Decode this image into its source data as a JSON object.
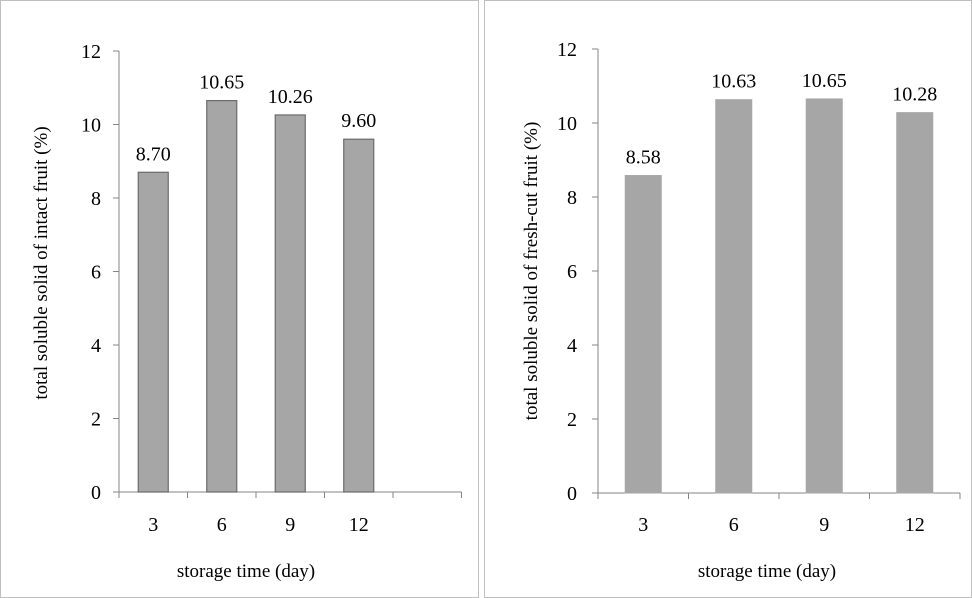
{
  "chart_data": [
    {
      "type": "bar",
      "categories": [
        "3",
        "6",
        "9",
        "12"
      ],
      "values": [
        8.7,
        10.65,
        10.26,
        9.6
      ],
      "data_labels": [
        "8.70",
        "10.65",
        "10.26",
        "9.60"
      ],
      "xlabel": "storage time (day)",
      "ylabel": "total soluble solid of intact fruit (%)",
      "ylim": [
        0,
        12
      ],
      "yticks": [
        "0",
        "2",
        "4",
        "6",
        "8",
        "10",
        "12"
      ],
      "grid": false,
      "bar_color": "#a6a6a6",
      "bar_outline": "#6b6b6b"
    },
    {
      "type": "bar",
      "categories": [
        "3",
        "6",
        "9",
        "12"
      ],
      "values": [
        8.58,
        10.63,
        10.65,
        10.28
      ],
      "data_labels": [
        "8.58",
        "10.63",
        "10.65",
        "10.28"
      ],
      "xlabel": "storage time (day)",
      "ylabel": "total soluble solid of fresh-cut fruit (%)",
      "ylim": [
        0,
        12
      ],
      "yticks": [
        "0",
        "2",
        "4",
        "6",
        "8",
        "10",
        "12"
      ],
      "grid": false,
      "bar_color": "#a6a6a6",
      "bar_outline": "#a6a6a6"
    }
  ]
}
